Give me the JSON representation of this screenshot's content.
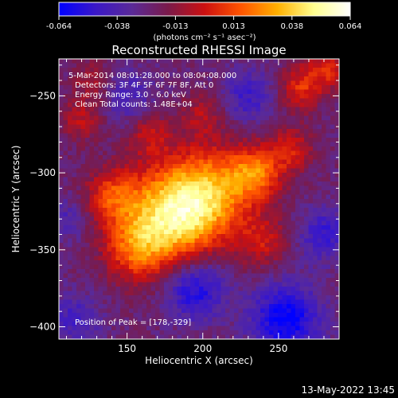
{
  "chart_data": {
    "type": "heatmap",
    "title": "Reconstructed RHESSI Image",
    "xlabel": "Heliocentric X (arcsec)",
    "ylabel": "Heliocentric Y (arcsec)",
    "xlim": [
      105,
      290
    ],
    "ylim": [
      -408,
      -226
    ],
    "x_ticks": [
      150,
      200,
      250
    ],
    "y_ticks": [
      -250,
      -300,
      -350,
      -400
    ],
    "colorbar": {
      "min": -0.064,
      "max": 0.064,
      "ticks": [
        "-0.064",
        "-0.038",
        "-0.013",
        "0.013",
        "0.038",
        "0.064"
      ],
      "unit_label": "(photons cm⁻² s⁻¹ asec⁻²)",
      "colors": [
        "#0000ff",
        "#3a18c8",
        "#5a2a98",
        "#7a1a4a",
        "#cc1010",
        "#ff5500",
        "#ffb000",
        "#ffff90",
        "#ffffff"
      ]
    },
    "annotations": [
      "5-Mar-2014 08:01:28.000 to 08:04:08.000",
      "Detectors: 3F 4F 5F 6F 7F 8F, Att 0",
      "Energy Range: 3.0 - 6.0 keV",
      "Clean    Total counts: 1.48E+04"
    ],
    "peak_label": "Position of Peak = [178,-329]",
    "peak": [
      178,
      -329
    ],
    "sources": [
      {
        "x": 178,
        "y": -329,
        "amp": 0.064,
        "sigma": 22
      },
      {
        "x": 205,
        "y": -312,
        "amp": 0.045,
        "sigma": 20
      },
      {
        "x": 235,
        "y": -300,
        "amp": 0.04,
        "sigma": 12
      },
      {
        "x": 155,
        "y": -350,
        "amp": 0.03,
        "sigma": 14
      },
      {
        "x": 265,
        "y": -245,
        "amp": 0.03,
        "sigma": 10
      },
      {
        "x": 120,
        "y": -265,
        "amp": 0.02,
        "sigma": 10
      },
      {
        "x": 128,
        "y": -240,
        "amp": 0.018,
        "sigma": 9
      },
      {
        "x": 283,
        "y": -232,
        "amp": 0.028,
        "sigma": 9
      },
      {
        "x": 258,
        "y": -285,
        "amp": 0.025,
        "sigma": 10
      },
      {
        "x": 140,
        "y": -315,
        "amp": 0.03,
        "sigma": 12
      },
      {
        "x": 240,
        "y": -345,
        "amp": 0.022,
        "sigma": 12
      },
      {
        "x": 200,
        "y": -262,
        "amp": 0.018,
        "sigma": 10
      },
      {
        "x": 165,
        "y": -275,
        "amp": 0.02,
        "sigma": 10
      },
      {
        "x": 195,
        "y": -375,
        "amp": -0.035,
        "sigma": 14
      },
      {
        "x": 255,
        "y": -395,
        "amp": -0.04,
        "sigma": 16
      },
      {
        "x": 280,
        "y": -340,
        "amp": -0.025,
        "sigma": 12
      },
      {
        "x": 115,
        "y": -395,
        "amp": -0.02,
        "sigma": 12
      },
      {
        "x": 230,
        "y": -250,
        "amp": -0.022,
        "sigma": 12
      },
      {
        "x": 150,
        "y": -250,
        "amp": -0.018,
        "sigma": 12
      },
      {
        "x": 110,
        "y": -330,
        "amp": -0.015,
        "sigma": 10
      }
    ],
    "background": -0.024
  },
  "footer": {
    "date": "13-May-2022 13:45"
  }
}
